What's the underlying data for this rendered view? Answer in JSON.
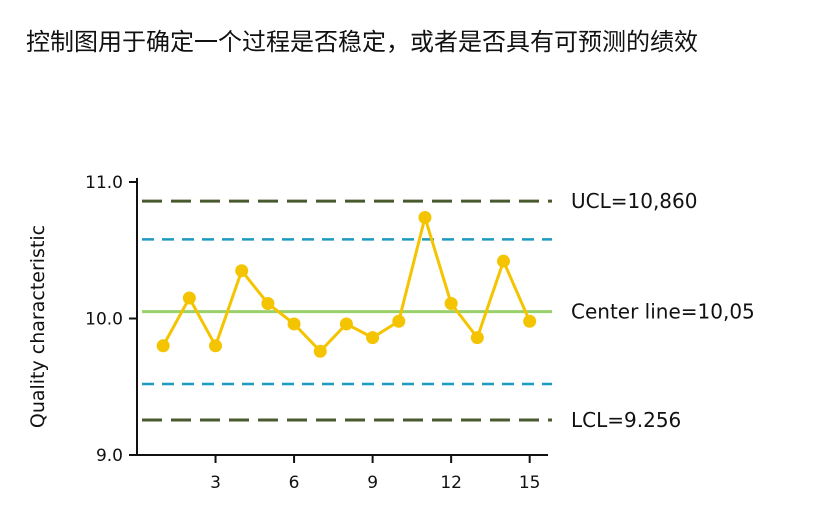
{
  "caption": "控制图用于确定一个过程是否稳定，或者是否具有可预测的绩效",
  "chart_data": {
    "type": "line",
    "ylabel": "Quality characteristic",
    "xlabel": "",
    "x_ticks": [
      3,
      6,
      9,
      12,
      15
    ],
    "y_ticks": [
      "9.0",
      "10.0",
      "11.0"
    ],
    "xlim": [
      0,
      15.7
    ],
    "ylim": [
      9.0,
      11.0
    ],
    "grid": false,
    "series": [
      {
        "x": [
          1,
          2,
          3,
          4,
          5,
          6,
          7,
          8,
          9,
          10,
          11,
          12,
          13,
          14,
          15
        ],
        "y": [
          9.8,
          10.15,
          9.8,
          10.35,
          10.11,
          9.96,
          9.76,
          9.96,
          9.86,
          9.98,
          10.74,
          10.11,
          9.86,
          10.42,
          9.98
        ],
        "color": "#f5c400"
      }
    ],
    "reference_lines": [
      {
        "y": 10.86,
        "label": "UCL=10,860",
        "style": "dashed",
        "color": "#4a5a2f"
      },
      {
        "y": 10.58,
        "label": "",
        "style": "dashed",
        "color": "#1f9bc1"
      },
      {
        "y": 10.05,
        "label": "Center line=10,05",
        "style": "solid",
        "color": "#9bd16a"
      },
      {
        "y": 9.52,
        "label": "",
        "style": "dashed",
        "color": "#1f9bc1"
      },
      {
        "y": 9.256,
        "label": "LCL=9.256",
        "style": "dashed",
        "color": "#4a5a2f"
      }
    ]
  }
}
